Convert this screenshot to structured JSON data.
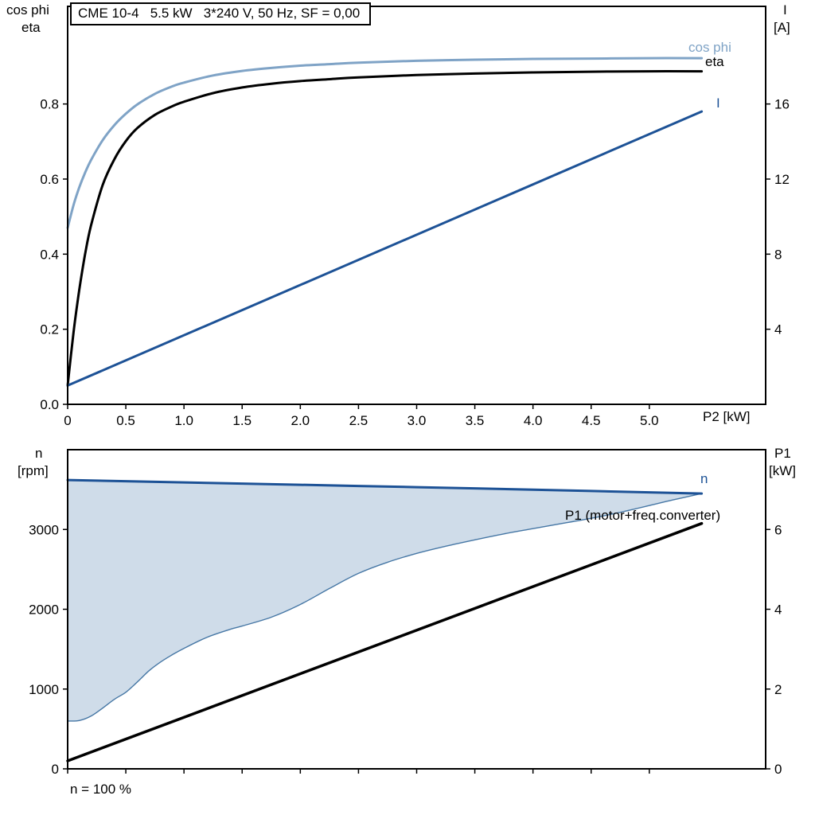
{
  "title_box": {
    "text": "CME 10-4   5.5 kW   3*240 V, 50 Hz, SF = 0,00"
  },
  "labels": {
    "top_left_line1": "cos phi",
    "top_left_line2": "eta",
    "top_right_line1": "I",
    "top_right_line2": "[A]",
    "x_axis_title": "P2 [kW]",
    "bottom_left_line1": "n",
    "bottom_left_line2": "[rpm]",
    "bottom_right_line1": "P1",
    "bottom_right_line2": "[kW]",
    "curve_cosphi": "cos phi",
    "curve_eta": "eta",
    "curve_current": "I",
    "curve_speed": "n",
    "curve_p1": "P1 (motor+freq.converter)",
    "footnote": "n = 100 %"
  },
  "colors": {
    "dark_blue": "#1d5296",
    "light_blue": "#7fa3c6",
    "black": "#000000",
    "area_fill": "#cfdce9",
    "area_edge": "#4677a5"
  },
  "chart_data": [
    {
      "type": "line",
      "title": "CME 10-4 5.5 kW 3*240 V, 50 Hz, SF = 0,00",
      "xlabel": "P2 [kW]",
      "ylabel_left": "cos phi / eta",
      "ylabel_right": "I [A]",
      "xlim": [
        0,
        6
      ],
      "ylim_left": [
        0,
        1.06
      ],
      "ylim_right": [
        0,
        21.2
      ],
      "grid": false,
      "xticks": [
        {
          "v": 0,
          "label": "0"
        },
        {
          "v": 0.5,
          "label": "0.5"
        },
        {
          "v": 1,
          "label": "1.0"
        },
        {
          "v": 1.5,
          "label": "1.5"
        },
        {
          "v": 2,
          "label": "2.0"
        },
        {
          "v": 2.5,
          "label": "2.5"
        },
        {
          "v": 3,
          "label": "3.0"
        },
        {
          "v": 3.5,
          "label": "3.5"
        },
        {
          "v": 4,
          "label": "4.0"
        },
        {
          "v": 4.5,
          "label": "4.5"
        },
        {
          "v": 5,
          "label": "5.0"
        }
      ],
      "yticks_left": [
        {
          "v": 0,
          "label": "0.0"
        },
        {
          "v": 0.2,
          "label": "0.2"
        },
        {
          "v": 0.4,
          "label": "0.4"
        },
        {
          "v": 0.6,
          "label": "0.6"
        },
        {
          "v": 0.8,
          "label": "0.8"
        }
      ],
      "yticks_right": [
        {
          "v": 4,
          "label": "4"
        },
        {
          "v": 8,
          "label": "8"
        },
        {
          "v": 12,
          "label": "12"
        },
        {
          "v": 16,
          "label": "16"
        }
      ],
      "series": [
        {
          "id": "cosphi",
          "name": "cos phi",
          "axis": "left",
          "color": "#7fa3c6",
          "width": 3,
          "smooth": true,
          "points": [
            [
              0,
              0.47
            ],
            [
              0.05,
              0.53
            ],
            [
              0.1,
              0.578
            ],
            [
              0.15,
              0.617
            ],
            [
              0.2,
              0.65
            ],
            [
              0.3,
              0.703
            ],
            [
              0.4,
              0.743
            ],
            [
              0.5,
              0.774
            ],
            [
              0.6,
              0.799
            ],
            [
              0.75,
              0.827
            ],
            [
              0.9,
              0.847
            ],
            [
              1.0,
              0.857
            ],
            [
              1.25,
              0.876
            ],
            [
              1.5,
              0.888
            ],
            [
              1.75,
              0.896
            ],
            [
              2.0,
              0.902
            ],
            [
              2.25,
              0.906
            ],
            [
              2.5,
              0.91
            ],
            [
              3.0,
              0.915
            ],
            [
              3.5,
              0.918
            ],
            [
              4.0,
              0.92
            ],
            [
              4.5,
              0.921
            ],
            [
              5.0,
              0.922
            ],
            [
              5.45,
              0.922
            ]
          ]
        },
        {
          "id": "eta",
          "name": "eta",
          "axis": "left",
          "color": "#000000",
          "width": 3,
          "smooth": true,
          "points": [
            [
              0,
              0.05
            ],
            [
              0.05,
              0.19
            ],
            [
              0.1,
              0.305
            ],
            [
              0.15,
              0.4
            ],
            [
              0.2,
              0.475
            ],
            [
              0.3,
              0.583
            ],
            [
              0.4,
              0.652
            ],
            [
              0.5,
              0.701
            ],
            [
              0.6,
              0.736
            ],
            [
              0.75,
              0.771
            ],
            [
              0.9,
              0.794
            ],
            [
              1.0,
              0.806
            ],
            [
              1.25,
              0.829
            ],
            [
              1.5,
              0.844
            ],
            [
              1.75,
              0.854
            ],
            [
              2.0,
              0.861
            ],
            [
              2.25,
              0.866
            ],
            [
              2.5,
              0.871
            ],
            [
              3.0,
              0.877
            ],
            [
              3.5,
              0.881
            ],
            [
              4.0,
              0.884
            ],
            [
              4.5,
              0.886
            ],
            [
              5.0,
              0.887
            ],
            [
              5.45,
              0.887
            ]
          ]
        },
        {
          "id": "current",
          "name": "I",
          "axis": "right",
          "color": "#1d5296",
          "width": 3,
          "smooth": false,
          "points": [
            [
              0,
              1.0
            ],
            [
              5.45,
              15.6
            ]
          ]
        }
      ]
    },
    {
      "type": "line+area",
      "title": "",
      "xlabel": "",
      "ylabel_left": "n [rpm]",
      "ylabel_right": "P1 [kW]",
      "xlim": [
        0,
        6
      ],
      "ylim_left": [
        0,
        4000
      ],
      "ylim_right": [
        0,
        8
      ],
      "grid": false,
      "xticks": [
        {
          "v": 0
        },
        {
          "v": 0.5
        },
        {
          "v": 1
        },
        {
          "v": 1.5
        },
        {
          "v": 2
        },
        {
          "v": 2.5
        },
        {
          "v": 3
        },
        {
          "v": 3.5
        },
        {
          "v": 4
        },
        {
          "v": 4.5
        },
        {
          "v": 5
        }
      ],
      "yticks_left": [
        {
          "v": 0,
          "label": "0"
        },
        {
          "v": 1000,
          "label": "1000"
        },
        {
          "v": 2000,
          "label": "2000"
        },
        {
          "v": 3000,
          "label": "3000"
        }
      ],
      "yticks_right": [
        {
          "v": 0,
          "label": "0"
        },
        {
          "v": 2,
          "label": "2"
        },
        {
          "v": 4,
          "label": "4"
        },
        {
          "v": 6,
          "label": "6"
        }
      ],
      "fills": [
        {
          "upper": "n",
          "lower": "nmin",
          "color": "#cfdce9"
        }
      ],
      "series": [
        {
          "id": "nmin",
          "name": "n min (speed range lower bound)",
          "axis": "left",
          "color": "#4677a5",
          "width": 1.4,
          "smooth": true,
          "points": [
            [
              0,
              600
            ],
            [
              0.1,
              605
            ],
            [
              0.2,
              660
            ],
            [
              0.3,
              760
            ],
            [
              0.4,
              870
            ],
            [
              0.5,
              960
            ],
            [
              0.6,
              1090
            ],
            [
              0.7,
              1230
            ],
            [
              0.8,
              1340
            ],
            [
              0.9,
              1430
            ],
            [
              1.0,
              1510
            ],
            [
              1.2,
              1650
            ],
            [
              1.4,
              1750
            ],
            [
              1.5,
              1790
            ],
            [
              1.75,
              1900
            ],
            [
              2.0,
              2060
            ],
            [
              2.25,
              2260
            ],
            [
              2.5,
              2450
            ],
            [
              2.75,
              2590
            ],
            [
              3.0,
              2700
            ],
            [
              3.25,
              2790
            ],
            [
              3.5,
              2870
            ],
            [
              3.75,
              2945
            ],
            [
              4.0,
              3010
            ],
            [
              4.25,
              3075
            ],
            [
              4.5,
              3140
            ],
            [
              4.75,
              3215
            ],
            [
              5.0,
              3300
            ],
            [
              5.2,
              3370
            ],
            [
              5.45,
              3450
            ]
          ]
        },
        {
          "id": "n",
          "name": "n",
          "axis": "left",
          "color": "#1d5296",
          "width": 3,
          "smooth": false,
          "points": [
            [
              0,
              3620
            ],
            [
              0.5,
              3605
            ],
            [
              1,
              3590
            ],
            [
              1.5,
              3575
            ],
            [
              2,
              3560
            ],
            [
              2.5,
              3545
            ],
            [
              3,
              3530
            ],
            [
              3.5,
              3515
            ],
            [
              4,
              3498
            ],
            [
              4.5,
              3482
            ],
            [
              5,
              3465
            ],
            [
              5.45,
              3450
            ]
          ]
        },
        {
          "id": "p1",
          "name": "P1 (motor+freq.converter)",
          "axis": "right",
          "color": "#000000",
          "width": 3.5,
          "smooth": false,
          "points": [
            [
              0,
              0.2
            ],
            [
              5.45,
              6.15
            ]
          ]
        }
      ]
    }
  ]
}
